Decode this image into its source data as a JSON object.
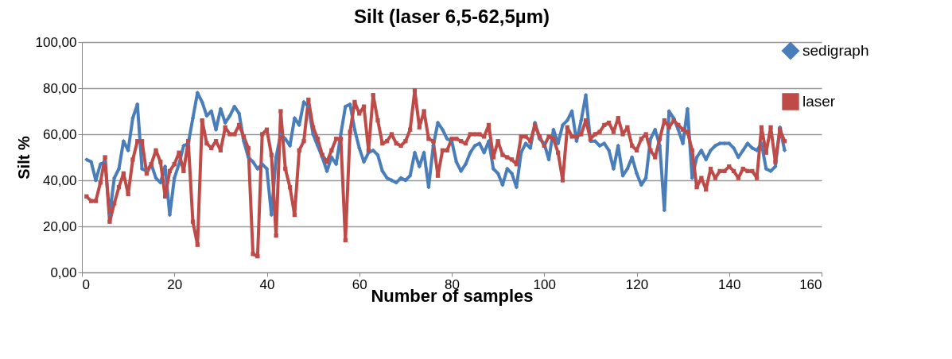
{
  "chart_data": {
    "type": "line",
    "title": "Silt (laser 6,5-62,5µm)",
    "xlabel": "Number of samples",
    "ylabel": "Silt %",
    "x": [
      1,
      2,
      3,
      4,
      5,
      6,
      7,
      8,
      9,
      10,
      11,
      12,
      13,
      14,
      15,
      16,
      17,
      18,
      19,
      20,
      21,
      22,
      23,
      24,
      25,
      26,
      27,
      28,
      29,
      30,
      31,
      32,
      33,
      34,
      35,
      36,
      37,
      38,
      39,
      40,
      41,
      42,
      43,
      44,
      45,
      46,
      47,
      48,
      49,
      50,
      51,
      52,
      53,
      54,
      55,
      56,
      57,
      58,
      59,
      60,
      61,
      62,
      63,
      64,
      65,
      66,
      67,
      68,
      69,
      70,
      71,
      72,
      73,
      74,
      75,
      76,
      77,
      78,
      79,
      80,
      81,
      82,
      83,
      84,
      85,
      86,
      87,
      88,
      89,
      90,
      91,
      92,
      93,
      94,
      95,
      96,
      97,
      98,
      99,
      100,
      101,
      102,
      103,
      104,
      105,
      106,
      107,
      108,
      109,
      110,
      111,
      112,
      113,
      114,
      115,
      116,
      117,
      118,
      119,
      120,
      121,
      122,
      123,
      124,
      125,
      126,
      127,
      128,
      129,
      130,
      131,
      132,
      133,
      134,
      135,
      136,
      137,
      138,
      139,
      140,
      141,
      142,
      143,
      144,
      145,
      146,
      147,
      148,
      149,
      150,
      151,
      152
    ],
    "series": [
      {
        "name": "sedigraph",
        "color": "#4a7ebb",
        "marker": "diamond",
        "values": [
          49,
          48,
          40,
          47,
          48,
          25,
          41,
          45,
          57,
          53,
          67,
          73,
          45,
          44,
          47,
          41,
          39,
          46,
          25,
          41,
          47,
          55,
          56,
          67,
          78,
          74,
          68,
          70,
          62,
          71,
          65,
          68,
          72,
          69,
          57,
          50,
          48,
          45,
          47,
          45,
          25,
          50,
          60,
          58,
          55,
          67,
          64,
          74,
          72,
          60,
          55,
          50,
          44,
          50,
          47,
          60,
          72,
          73,
          62,
          54,
          48,
          52,
          53,
          51,
          44,
          41,
          40,
          39,
          41,
          40,
          42,
          52,
          46,
          52,
          37,
          55,
          65,
          62,
          58,
          57,
          48,
          44,
          47,
          52,
          55,
          56,
          52,
          57,
          45,
          43,
          38,
          45,
          43,
          37,
          52,
          56,
          54,
          65,
          58,
          56,
          49,
          62,
          56,
          64,
          66,
          70,
          57,
          66,
          77,
          57,
          57,
          55,
          56,
          53,
          45,
          55,
          42,
          45,
          50,
          43,
          38,
          41,
          58,
          62,
          55,
          27,
          70,
          67,
          62,
          56,
          71,
          41,
          50,
          53,
          49,
          53,
          55,
          56,
          56,
          56,
          54,
          50,
          53,
          56,
          54,
          53,
          56,
          45,
          44,
          46,
          63,
          53
        ]
      },
      {
        "name": "laser",
        "color": "#be4b48",
        "marker": "square",
        "values": [
          33,
          31,
          31,
          39,
          50,
          22,
          30,
          37,
          43,
          34,
          49,
          57,
          57,
          43,
          47,
          53,
          48,
          33,
          44,
          47,
          52,
          44,
          57,
          22,
          12,
          66,
          56,
          54,
          57,
          53,
          63,
          60,
          60,
          64,
          59,
          54,
          8,
          7,
          60,
          62,
          51,
          16,
          70,
          45,
          37,
          25,
          53,
          57,
          75,
          63,
          58,
          51,
          48,
          53,
          58,
          58,
          14,
          61,
          74,
          69,
          72,
          53,
          77,
          66,
          56,
          57,
          60,
          56,
          55,
          57,
          62,
          79,
          63,
          70,
          58,
          57,
          42,
          53,
          53,
          58,
          58,
          57,
          56,
          60,
          60,
          60,
          59,
          64,
          50,
          57,
          51,
          50,
          49,
          47,
          59,
          59,
          57,
          64,
          59,
          55,
          59,
          58,
          52,
          40,
          63,
          59,
          59,
          60,
          66,
          58,
          60,
          61,
          64,
          65,
          61,
          67,
          60,
          63,
          55,
          53,
          58,
          60,
          53,
          50,
          58,
          66,
          63,
          66,
          64,
          62,
          61,
          53,
          37,
          41,
          36,
          45,
          41,
          44,
          44,
          46,
          44,
          41,
          45,
          44,
          44,
          41,
          63,
          52,
          63,
          48,
          62,
          57
        ]
      }
    ],
    "xlim": [
      0,
      160
    ],
    "xticks": [
      0,
      20,
      40,
      60,
      80,
      100,
      120,
      140,
      160
    ],
    "ylim": [
      0,
      100
    ],
    "yticks": [
      {
        "value": 0,
        "label": "0,00"
      },
      {
        "value": 20,
        "label": "20,00"
      },
      {
        "value": 40,
        "label": "40,00"
      },
      {
        "value": 60,
        "label": "60,00"
      },
      {
        "value": 80,
        "label": "80,00"
      },
      {
        "value": 100,
        "label": "100,00"
      }
    ],
    "grid": "y",
    "legend": "right"
  }
}
